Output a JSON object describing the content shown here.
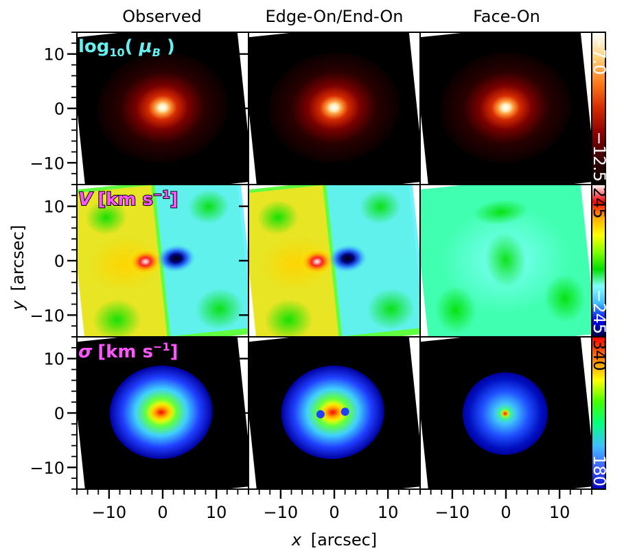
{
  "figure": {
    "column_titles": [
      "Observed",
      "Edge-On/End-On",
      "Face-On"
    ],
    "xlabel_prefix": "x",
    "xlabel_unit": "[arcsec]",
    "ylabel_prefix": "y",
    "ylabel_unit": "[arcsec]"
  },
  "colors": {
    "surface_brightness_map": [
      "#000000",
      "#3a0000",
      "#8a0000",
      "#d42a00",
      "#ff7a1a",
      "#ffd27a",
      "#ffffff"
    ],
    "velocity_map": [
      "#000040",
      "#0000ff",
      "#40c0ff",
      "#80ffff",
      "#00e000",
      "#80ff00",
      "#ffff00",
      "#ffb000",
      "#ff0000",
      "#ffffff"
    ],
    "dispersion_map": [
      "#0000c0",
      "#4060ff",
      "#40c0ff",
      "#00ff80",
      "#40ff00",
      "#ffff00",
      "#ff8000",
      "#ff0000"
    ],
    "row_title_colors": [
      "#66f0f0",
      "#ff55ff",
      "#ff55ff"
    ]
  },
  "chart_data": [
    {
      "type": "heatmap",
      "row": "surface_brightness",
      "row_title": {
        "main": "log",
        "sub": "10",
        "open": "( ",
        "symbol": "μ",
        "symbol_sub": "B",
        "close": " )"
      },
      "colorbar": {
        "ticks": [
          "−7.0",
          "−12.5"
        ],
        "range": [
          -12.5,
          -7.0
        ]
      },
      "panels": [
        "Observed",
        "Edge-On/End-On",
        "Face-On"
      ],
      "xlim": [
        -16,
        16
      ],
      "ylim": [
        -14,
        14
      ],
      "xticks": [
        "−10",
        "0",
        "10"
      ],
      "yticks": [
        "10",
        "0",
        "−10"
      ]
    },
    {
      "type": "heatmap",
      "row": "velocity",
      "row_title": {
        "main": "V",
        "unit": "[km s",
        "exp": "−1",
        "end": "]"
      },
      "colorbar": {
        "ticks": [
          "245",
          "−245"
        ],
        "range": [
          -245,
          245
        ]
      },
      "panels": [
        "Observed",
        "Edge-On/End-On",
        "Face-On"
      ],
      "xlim": [
        -16,
        16
      ],
      "ylim": [
        -14,
        14
      ],
      "xticks": [
        "−10",
        "0",
        "10"
      ],
      "yticks": [
        "10",
        "0",
        "−10"
      ]
    },
    {
      "type": "heatmap",
      "row": "dispersion",
      "row_title": {
        "main": "σ",
        "unit": "[km s",
        "exp": "−1",
        "end": "]"
      },
      "colorbar": {
        "ticks": [
          "340",
          "180"
        ],
        "range": [
          180,
          340
        ]
      },
      "panels": [
        "Observed",
        "Edge-On/End-On",
        "Face-On"
      ],
      "xlim": [
        -16,
        16
      ],
      "ylim": [
        -14,
        14
      ],
      "xticks": [
        "−10",
        "0",
        "10"
      ],
      "yticks": [
        "10",
        "0",
        "−10"
      ]
    }
  ]
}
